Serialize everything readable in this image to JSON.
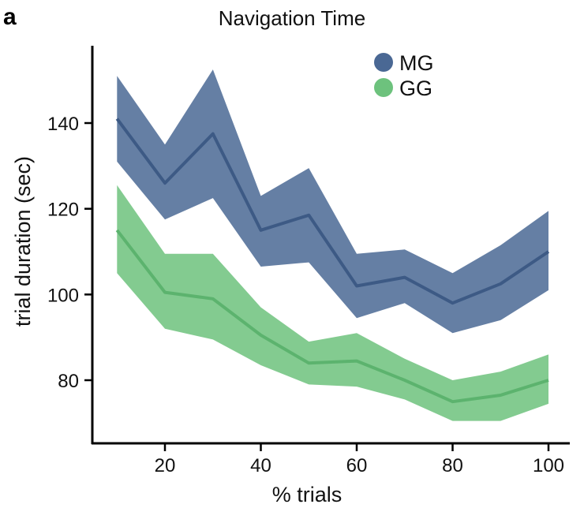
{
  "panel_label": "a",
  "chart_data": {
    "type": "line",
    "title": "Navigation Time",
    "xlabel": "% trials",
    "ylabel": "trial duration (sec)",
    "xlim": [
      5,
      102
    ],
    "ylim": [
      67,
      158
    ],
    "xticks": [
      20,
      40,
      60,
      80,
      100
    ],
    "yticks": [
      80,
      100,
      120,
      140
    ],
    "legend_position": "top-right",
    "grid": false,
    "x": [
      10,
      20,
      30,
      40,
      50,
      60,
      70,
      80,
      90,
      100
    ],
    "series": [
      {
        "name": "MG",
        "color": "#4a6894",
        "mean": [
          141,
          126,
          137.5,
          115,
          118.5,
          102,
          104,
          98,
          102.5,
          110
        ],
        "upper": [
          151,
          135,
          152.5,
          123,
          129.5,
          109.5,
          110.5,
          105,
          111.5,
          119.5
        ],
        "lower": [
          131,
          117.5,
          122.5,
          106.5,
          107.5,
          94.5,
          98,
          91,
          94,
          101
        ]
      },
      {
        "name": "GG",
        "color": "#6dc27d",
        "mean": [
          115,
          100.5,
          99,
          90.5,
          84,
          84.5,
          80,
          75,
          76.5,
          80
        ],
        "upper": [
          125.5,
          109.5,
          109.5,
          97,
          89,
          91,
          85,
          80,
          82,
          86
        ],
        "lower": [
          105,
          92,
          89.5,
          83.5,
          79,
          78.5,
          75.5,
          70.5,
          70.5,
          74.5
        ]
      }
    ]
  }
}
